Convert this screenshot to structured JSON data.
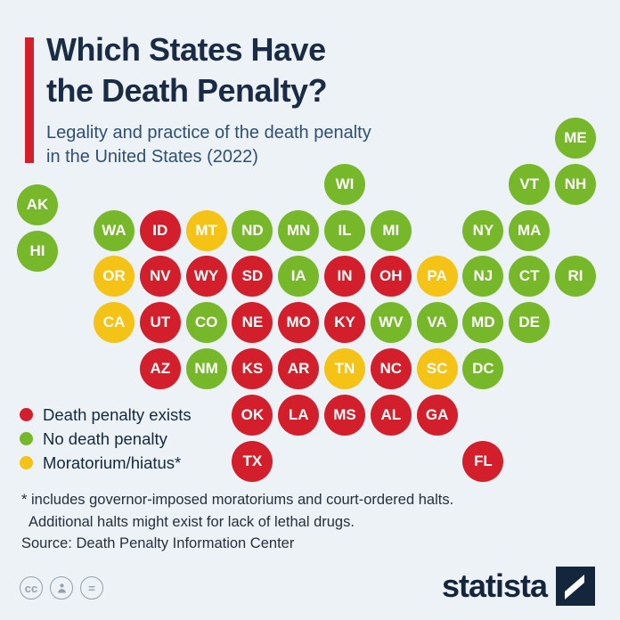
{
  "header": {
    "title_line1": "Which States Have",
    "title_line2": "the Death Penalty?",
    "subtitle_line1": "Legality and practice of the death penalty",
    "subtitle_line2": "in the United States (2022)"
  },
  "colors": {
    "exists": "#d21f2b",
    "none": "#76b82a",
    "moratorium": "#f5c216",
    "accent_bar": "#d21f2b",
    "background": "#edf2f7",
    "title_text": "#1a2b45",
    "subtitle_text": "#2f4f73"
  },
  "legend": [
    {
      "label": "Death penalty exists",
      "status": "exists"
    },
    {
      "label": "No death penalty",
      "status": "none"
    },
    {
      "label": "Moratorium/hiatus*",
      "status": "moratorium"
    }
  ],
  "footnote": {
    "line1": "* includes governor-imposed moratoriums and court-ordered halts.",
    "line2": "Additional halts might exist for lack of lethal drugs."
  },
  "source": "Source: Death Penalty Information Center",
  "branding": {
    "logo_text": "statista"
  },
  "cc_icons": [
    "cc-icon",
    "attribution-person-icon",
    "equals-icon"
  ],
  "chart_data": {
    "type": "heatmap",
    "title": "Which States Have the Death Penalty?",
    "subtitle": "Legality and practice of the death penalty in the United States (2022)",
    "legend": {
      "exists": "Death penalty exists",
      "none": "No death penalty",
      "moratorium": "Moratorium/hiatus*"
    },
    "states": [
      {
        "abbr": "ME",
        "status": "none",
        "row": 0,
        "col": 11
      },
      {
        "abbr": "WI",
        "status": "none",
        "row": 1,
        "col": 6
      },
      {
        "abbr": "VT",
        "status": "none",
        "row": 1,
        "col": 10
      },
      {
        "abbr": "NH",
        "status": "none",
        "row": 1,
        "col": 11
      },
      {
        "abbr": "AK",
        "status": "none",
        "row": 1.45,
        "col": 0
      },
      {
        "abbr": "WA",
        "status": "none",
        "row": 2,
        "col": 1
      },
      {
        "abbr": "ID",
        "status": "exists",
        "row": 2,
        "col": 2
      },
      {
        "abbr": "MT",
        "status": "moratorium",
        "row": 2,
        "col": 3
      },
      {
        "abbr": "ND",
        "status": "none",
        "row": 2,
        "col": 4
      },
      {
        "abbr": "MN",
        "status": "none",
        "row": 2,
        "col": 5
      },
      {
        "abbr": "IL",
        "status": "none",
        "row": 2,
        "col": 6
      },
      {
        "abbr": "MI",
        "status": "none",
        "row": 2,
        "col": 7
      },
      {
        "abbr": "NY",
        "status": "none",
        "row": 2,
        "col": 9
      },
      {
        "abbr": "MA",
        "status": "none",
        "row": 2,
        "col": 10
      },
      {
        "abbr": "HI",
        "status": "none",
        "row": 2.45,
        "col": 0
      },
      {
        "abbr": "OR",
        "status": "moratorium",
        "row": 3,
        "col": 1
      },
      {
        "abbr": "NV",
        "status": "exists",
        "row": 3,
        "col": 2
      },
      {
        "abbr": "WY",
        "status": "exists",
        "row": 3,
        "col": 3
      },
      {
        "abbr": "SD",
        "status": "exists",
        "row": 3,
        "col": 4
      },
      {
        "abbr": "IA",
        "status": "none",
        "row": 3,
        "col": 5
      },
      {
        "abbr": "IN",
        "status": "exists",
        "row": 3,
        "col": 6
      },
      {
        "abbr": "OH",
        "status": "exists",
        "row": 3,
        "col": 7
      },
      {
        "abbr": "PA",
        "status": "moratorium",
        "row": 3,
        "col": 8
      },
      {
        "abbr": "NJ",
        "status": "none",
        "row": 3,
        "col": 9
      },
      {
        "abbr": "CT",
        "status": "none",
        "row": 3,
        "col": 10
      },
      {
        "abbr": "RI",
        "status": "none",
        "row": 3,
        "col": 11
      },
      {
        "abbr": "CA",
        "status": "moratorium",
        "row": 4,
        "col": 1
      },
      {
        "abbr": "UT",
        "status": "exists",
        "row": 4,
        "col": 2
      },
      {
        "abbr": "CO",
        "status": "none",
        "row": 4,
        "col": 3
      },
      {
        "abbr": "NE",
        "status": "exists",
        "row": 4,
        "col": 4
      },
      {
        "abbr": "MO",
        "status": "exists",
        "row": 4,
        "col": 5
      },
      {
        "abbr": "KY",
        "status": "exists",
        "row": 4,
        "col": 6
      },
      {
        "abbr": "WV",
        "status": "none",
        "row": 4,
        "col": 7
      },
      {
        "abbr": "VA",
        "status": "none",
        "row": 4,
        "col": 8
      },
      {
        "abbr": "MD",
        "status": "none",
        "row": 4,
        "col": 9
      },
      {
        "abbr": "DE",
        "status": "none",
        "row": 4,
        "col": 10
      },
      {
        "abbr": "AZ",
        "status": "exists",
        "row": 5,
        "col": 2
      },
      {
        "abbr": "NM",
        "status": "none",
        "row": 5,
        "col": 3
      },
      {
        "abbr": "KS",
        "status": "exists",
        "row": 5,
        "col": 4
      },
      {
        "abbr": "AR",
        "status": "exists",
        "row": 5,
        "col": 5
      },
      {
        "abbr": "TN",
        "status": "moratorium",
        "row": 5,
        "col": 6
      },
      {
        "abbr": "NC",
        "status": "exists",
        "row": 5,
        "col": 7
      },
      {
        "abbr": "SC",
        "status": "moratorium",
        "row": 5,
        "col": 8
      },
      {
        "abbr": "DC",
        "status": "none",
        "row": 5,
        "col": 9
      },
      {
        "abbr": "OK",
        "status": "exists",
        "row": 6,
        "col": 4
      },
      {
        "abbr": "LA",
        "status": "exists",
        "row": 6,
        "col": 5
      },
      {
        "abbr": "MS",
        "status": "exists",
        "row": 6,
        "col": 6
      },
      {
        "abbr": "AL",
        "status": "exists",
        "row": 6,
        "col": 7
      },
      {
        "abbr": "GA",
        "status": "exists",
        "row": 6,
        "col": 8
      },
      {
        "abbr": "TX",
        "status": "exists",
        "row": 7,
        "col": 4
      },
      {
        "abbr": "FL",
        "status": "exists",
        "row": 7,
        "col": 9
      }
    ]
  }
}
